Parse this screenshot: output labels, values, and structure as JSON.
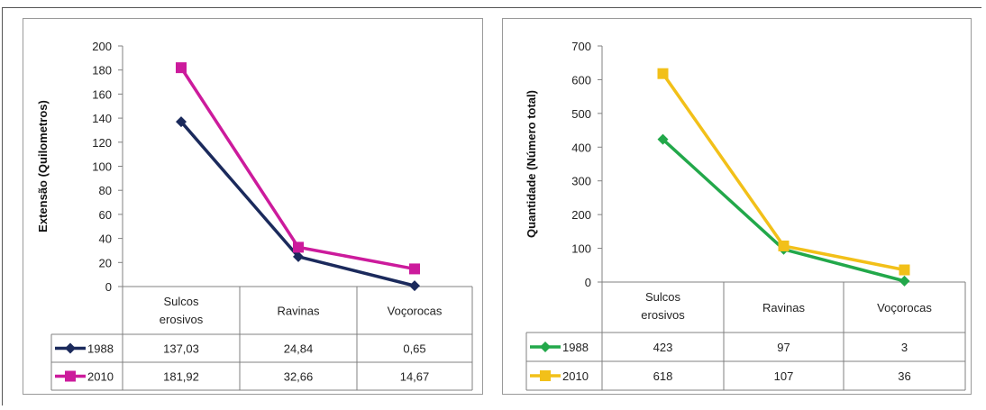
{
  "chart_data": [
    {
      "type": "line",
      "ylabel": "Extensão  (Quilometros)",
      "ylim": [
        0,
        200
      ],
      "yticks": [
        0,
        20,
        40,
        60,
        80,
        100,
        120,
        140,
        160,
        180,
        200
      ],
      "categories": [
        "Sulcos erosivos",
        "Ravinas",
        "Voçorocas"
      ],
      "series": [
        {
          "name": "1988",
          "color": "#1b2a5c",
          "marker": "diamond",
          "values": [
            137.03,
            24.84,
            0.65
          ],
          "labels": [
            "137,03",
            "24,84",
            "0,65"
          ]
        },
        {
          "name": "2010",
          "color": "#cc1b9c",
          "marker": "square",
          "values": [
            181.92,
            32.66,
            14.67
          ],
          "labels": [
            "181,92",
            "32,66",
            "14,67"
          ]
        }
      ],
      "grid": false,
      "legend": "data table below x-axis"
    },
    {
      "type": "line",
      "ylabel": "Quantidade  (Número total)",
      "ylim": [
        0,
        700
      ],
      "yticks": [
        0,
        100,
        200,
        300,
        400,
        500,
        600,
        700
      ],
      "categories": [
        "Sulcos erosivos",
        "Ravinas",
        "Voçorocas"
      ],
      "series": [
        {
          "name": "1988",
          "color": "#22a84a",
          "marker": "diamond",
          "values": [
            423,
            97,
            3
          ],
          "labels": [
            "423",
            "97",
            "3"
          ]
        },
        {
          "name": "2010",
          "color": "#f2c019",
          "marker": "square",
          "values": [
            618,
            107,
            36
          ],
          "labels": [
            "618",
            "107",
            "36"
          ]
        }
      ],
      "grid": false,
      "legend": "data table below x-axis"
    }
  ]
}
